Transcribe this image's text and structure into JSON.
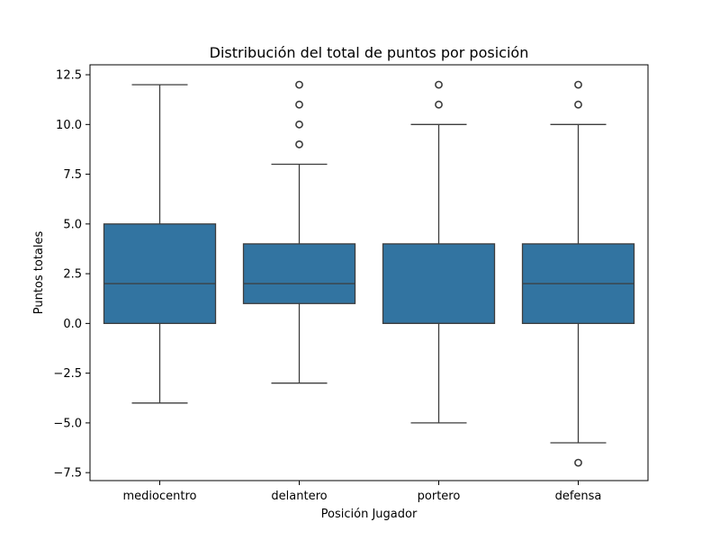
{
  "chart_data": {
    "type": "box",
    "title": "Distribución del total de puntos por posición",
    "xlabel": "Posición Jugador",
    "ylabel": "Puntos totales",
    "ylim": [
      -7.9,
      13.0
    ],
    "yticks": [
      -7.5,
      -5.0,
      -2.5,
      0.0,
      2.5,
      5.0,
      7.5,
      10.0,
      12.5
    ],
    "ytick_labels": [
      "−7.5",
      "−5.0",
      "−2.5",
      "0.0",
      "2.5",
      "5.0",
      "7.5",
      "10.0",
      "12.5"
    ],
    "categories": [
      "mediocentro",
      "delantero",
      "portero",
      "defensa"
    ],
    "boxes": [
      {
        "category": "mediocentro",
        "whisker_low": -4,
        "q1": 0,
        "median": 2,
        "q3": 5,
        "whisker_high": 12,
        "outliers": []
      },
      {
        "category": "delantero",
        "whisker_low": -3,
        "q1": 1,
        "median": 2,
        "q3": 4,
        "whisker_high": 8,
        "outliers": [
          9,
          10,
          11,
          12
        ]
      },
      {
        "category": "portero",
        "whisker_low": -5,
        "q1": 0,
        "median": 0,
        "q3": 4,
        "whisker_high": 10,
        "outliers": [
          11,
          12
        ]
      },
      {
        "category": "defensa",
        "whisker_low": -6,
        "q1": 0,
        "median": 2,
        "q3": 4,
        "whisker_high": 10,
        "outliers": [
          -7,
          11,
          12
        ]
      }
    ],
    "colors": {
      "box_fill": "#3274a1",
      "line": "#3d3d3d",
      "axis": "#000000"
    },
    "grid": false,
    "legend": "none"
  }
}
